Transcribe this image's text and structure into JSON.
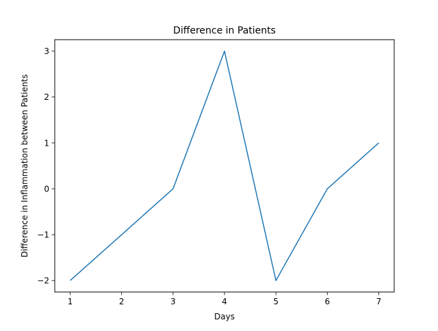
{
  "chart_data": {
    "type": "line",
    "title": "Difference in Patients",
    "xlabel": "Days",
    "ylabel": "Difference in Inflammation between Patients",
    "x": [
      1,
      2,
      3,
      4,
      5,
      6,
      7
    ],
    "series": [
      {
        "values": [
          -2,
          -1,
          0,
          3,
          -2,
          0,
          1
        ],
        "color": "#1f77b4"
      }
    ],
    "xlim": [
      0.7,
      7.3
    ],
    "ylim": [
      -2.25,
      3.25
    ],
    "xticks": [
      1,
      2,
      3,
      4,
      5,
      6,
      7
    ],
    "yticks": [
      -2,
      -1,
      0,
      1,
      2,
      3
    ],
    "ytick_labels": [
      "−2",
      "−1",
      "0",
      "1",
      "2",
      "3"
    ],
    "grid": false,
    "legend": "none"
  }
}
